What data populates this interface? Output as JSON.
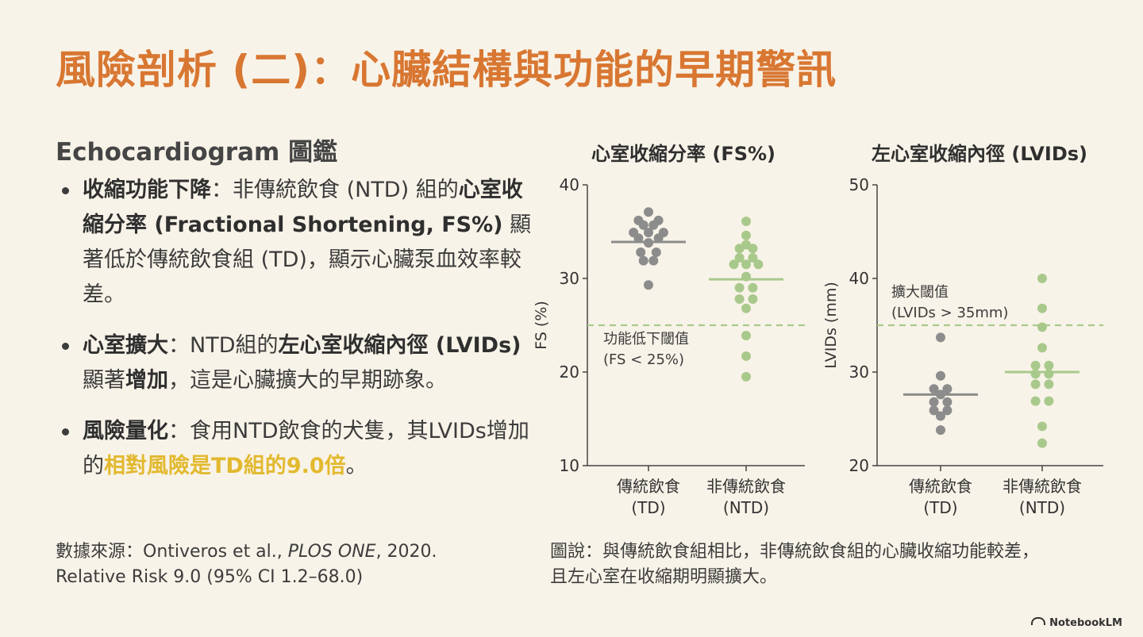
{
  "page_title": "風險剖析 (二)：心臟結構與功能的早期警訊",
  "section_heading": "Echocardiogram 圖鑑",
  "bullets": [
    {
      "title": "收縮功能下降",
      "sep": "：",
      "t1": "非傳統飲食 (NTD) 組的",
      "b1": "心室收縮分率 (Fractional Shortening, FS%)",
      "t2": " 顯著低於傳統飲食組 (TD)，顯示心臟泵血效率較差。"
    },
    {
      "title": "心室擴大",
      "sep": "：",
      "t1": "NTD組的",
      "b1": "左心室收縮內徑 (LVIDs)",
      "t2": " 顯著",
      "b2": "增加",
      "t3": "，這是心臟擴大的早期跡象。"
    },
    {
      "title": "風險量化",
      "sep": "：",
      "t1": "食用NTD飲食的犬隻，其LVIDs增加的",
      "hl": "相對風險是TD組的9.0倍",
      "t2": "。"
    }
  ],
  "source": {
    "prefix": "數據來源：Ontiveros et al., ",
    "journal": "PLOS ONE",
    "suffix": ", 2020.",
    "line2": "Relative Risk 9.0 (95% CI 1.2–68.0)"
  },
  "caption": {
    "line1": "圖說：與傳統飲食組相比，非傳統飲食組的心臟收縮功能較差，",
    "line2": "且左心室在收縮期明顯擴大。"
  },
  "brand": "NotebookLM",
  "colors": {
    "title": "#d87732",
    "highlight": "#e2b92f",
    "td": "#8c8c8c",
    "ntd": "#a9c98c",
    "threshold": "#a9c98c",
    "axis": "#444444"
  },
  "chart_data": [
    {
      "type": "scatter",
      "title": "心室收縮分率 (FS%)",
      "ylabel": "FS (%)",
      "ylim": [
        10,
        40
      ],
      "yticks": [
        10,
        20,
        30,
        40
      ],
      "categories": [
        {
          "line1": "傳統飲食",
          "line2": "(TD)"
        },
        {
          "line1": "非傳統飲食",
          "line2": "(NTD)"
        }
      ],
      "series": [
        {
          "group": 0,
          "color": "#8c8c8c",
          "mean": 33.9,
          "points": [
            [
              0,
              37.1
            ],
            [
              -0.9,
              36.2
            ],
            [
              0.9,
              36.2
            ],
            [
              -0.45,
              35.7
            ],
            [
              0.45,
              35.7
            ],
            [
              -1.35,
              34.9
            ],
            [
              0,
              34.9
            ],
            [
              1.35,
              34.9
            ],
            [
              -0.9,
              34.3
            ],
            [
              0.9,
              34.3
            ],
            [
              0,
              33.8
            ],
            [
              -0.7,
              32.8
            ],
            [
              0.7,
              32.8
            ],
            [
              -0.45,
              31.9
            ],
            [
              0.45,
              31.9
            ],
            [
              0,
              29.3
            ]
          ]
        },
        {
          "group": 1,
          "color": "#a9c98c",
          "mean": 29.9,
          "points": [
            [
              0,
              36.1
            ],
            [
              0,
              34.6
            ],
            [
              0,
              33.6
            ],
            [
              -0.6,
              33.2
            ],
            [
              0.6,
              33.2
            ],
            [
              -0.6,
              32.2
            ],
            [
              0.6,
              32.2
            ],
            [
              -1.1,
              31.5
            ],
            [
              0,
              31.5
            ],
            [
              1.1,
              31.5
            ],
            [
              0,
              30.2
            ],
            [
              -0.6,
              29.0
            ],
            [
              0.6,
              29.0
            ],
            [
              -0.6,
              27.8
            ],
            [
              0.6,
              27.8
            ],
            [
              0,
              26.8
            ],
            [
              0,
              23.9
            ],
            [
              0,
              21.7
            ],
            [
              0,
              19.5
            ]
          ]
        }
      ],
      "threshold": {
        "value": 25,
        "label1": "功能低下閾值",
        "label2": "(FS < 25%)"
      }
    },
    {
      "type": "scatter",
      "title": "左心室收縮內徑 (LVIDs)",
      "ylabel": "LVIDs (mm)",
      "ylim": [
        20,
        50
      ],
      "yticks": [
        20,
        30,
        40,
        50
      ],
      "categories": [
        {
          "line1": "傳統飲食",
          "line2": "(TD)"
        },
        {
          "line1": "非傳統飲食",
          "line2": "(NTD)"
        }
      ],
      "series": [
        {
          "group": 0,
          "color": "#8c8c8c",
          "mean": 27.6,
          "points": [
            [
              0,
              33.7
            ],
            [
              0,
              29.6
            ],
            [
              -0.6,
              28.2
            ],
            [
              0.6,
              28.2
            ],
            [
              0,
              27.6
            ],
            [
              -0.6,
              26.8
            ],
            [
              0.6,
              26.8
            ],
            [
              -0.6,
              25.9
            ],
            [
              0.6,
              25.9
            ],
            [
              0,
              25.3
            ],
            [
              0,
              23.8
            ]
          ]
        },
        {
          "group": 1,
          "color": "#a9c98c",
          "mean": 30.0,
          "points": [
            [
              0,
              40.0
            ],
            [
              0,
              36.8
            ],
            [
              0,
              34.8
            ],
            [
              0,
              32.6
            ],
            [
              -0.6,
              30.7
            ],
            [
              0.6,
              30.7
            ],
            [
              -0.6,
              29.8
            ],
            [
              0.6,
              29.8
            ],
            [
              -0.6,
              28.7
            ],
            [
              0.6,
              28.7
            ],
            [
              -0.6,
              26.9
            ],
            [
              0.6,
              26.9
            ],
            [
              0,
              24.2
            ],
            [
              0,
              22.4
            ]
          ]
        }
      ],
      "threshold": {
        "value": 35,
        "label1": "擴大閾值",
        "label2": "(LVIDs > 35mm)"
      }
    }
  ]
}
